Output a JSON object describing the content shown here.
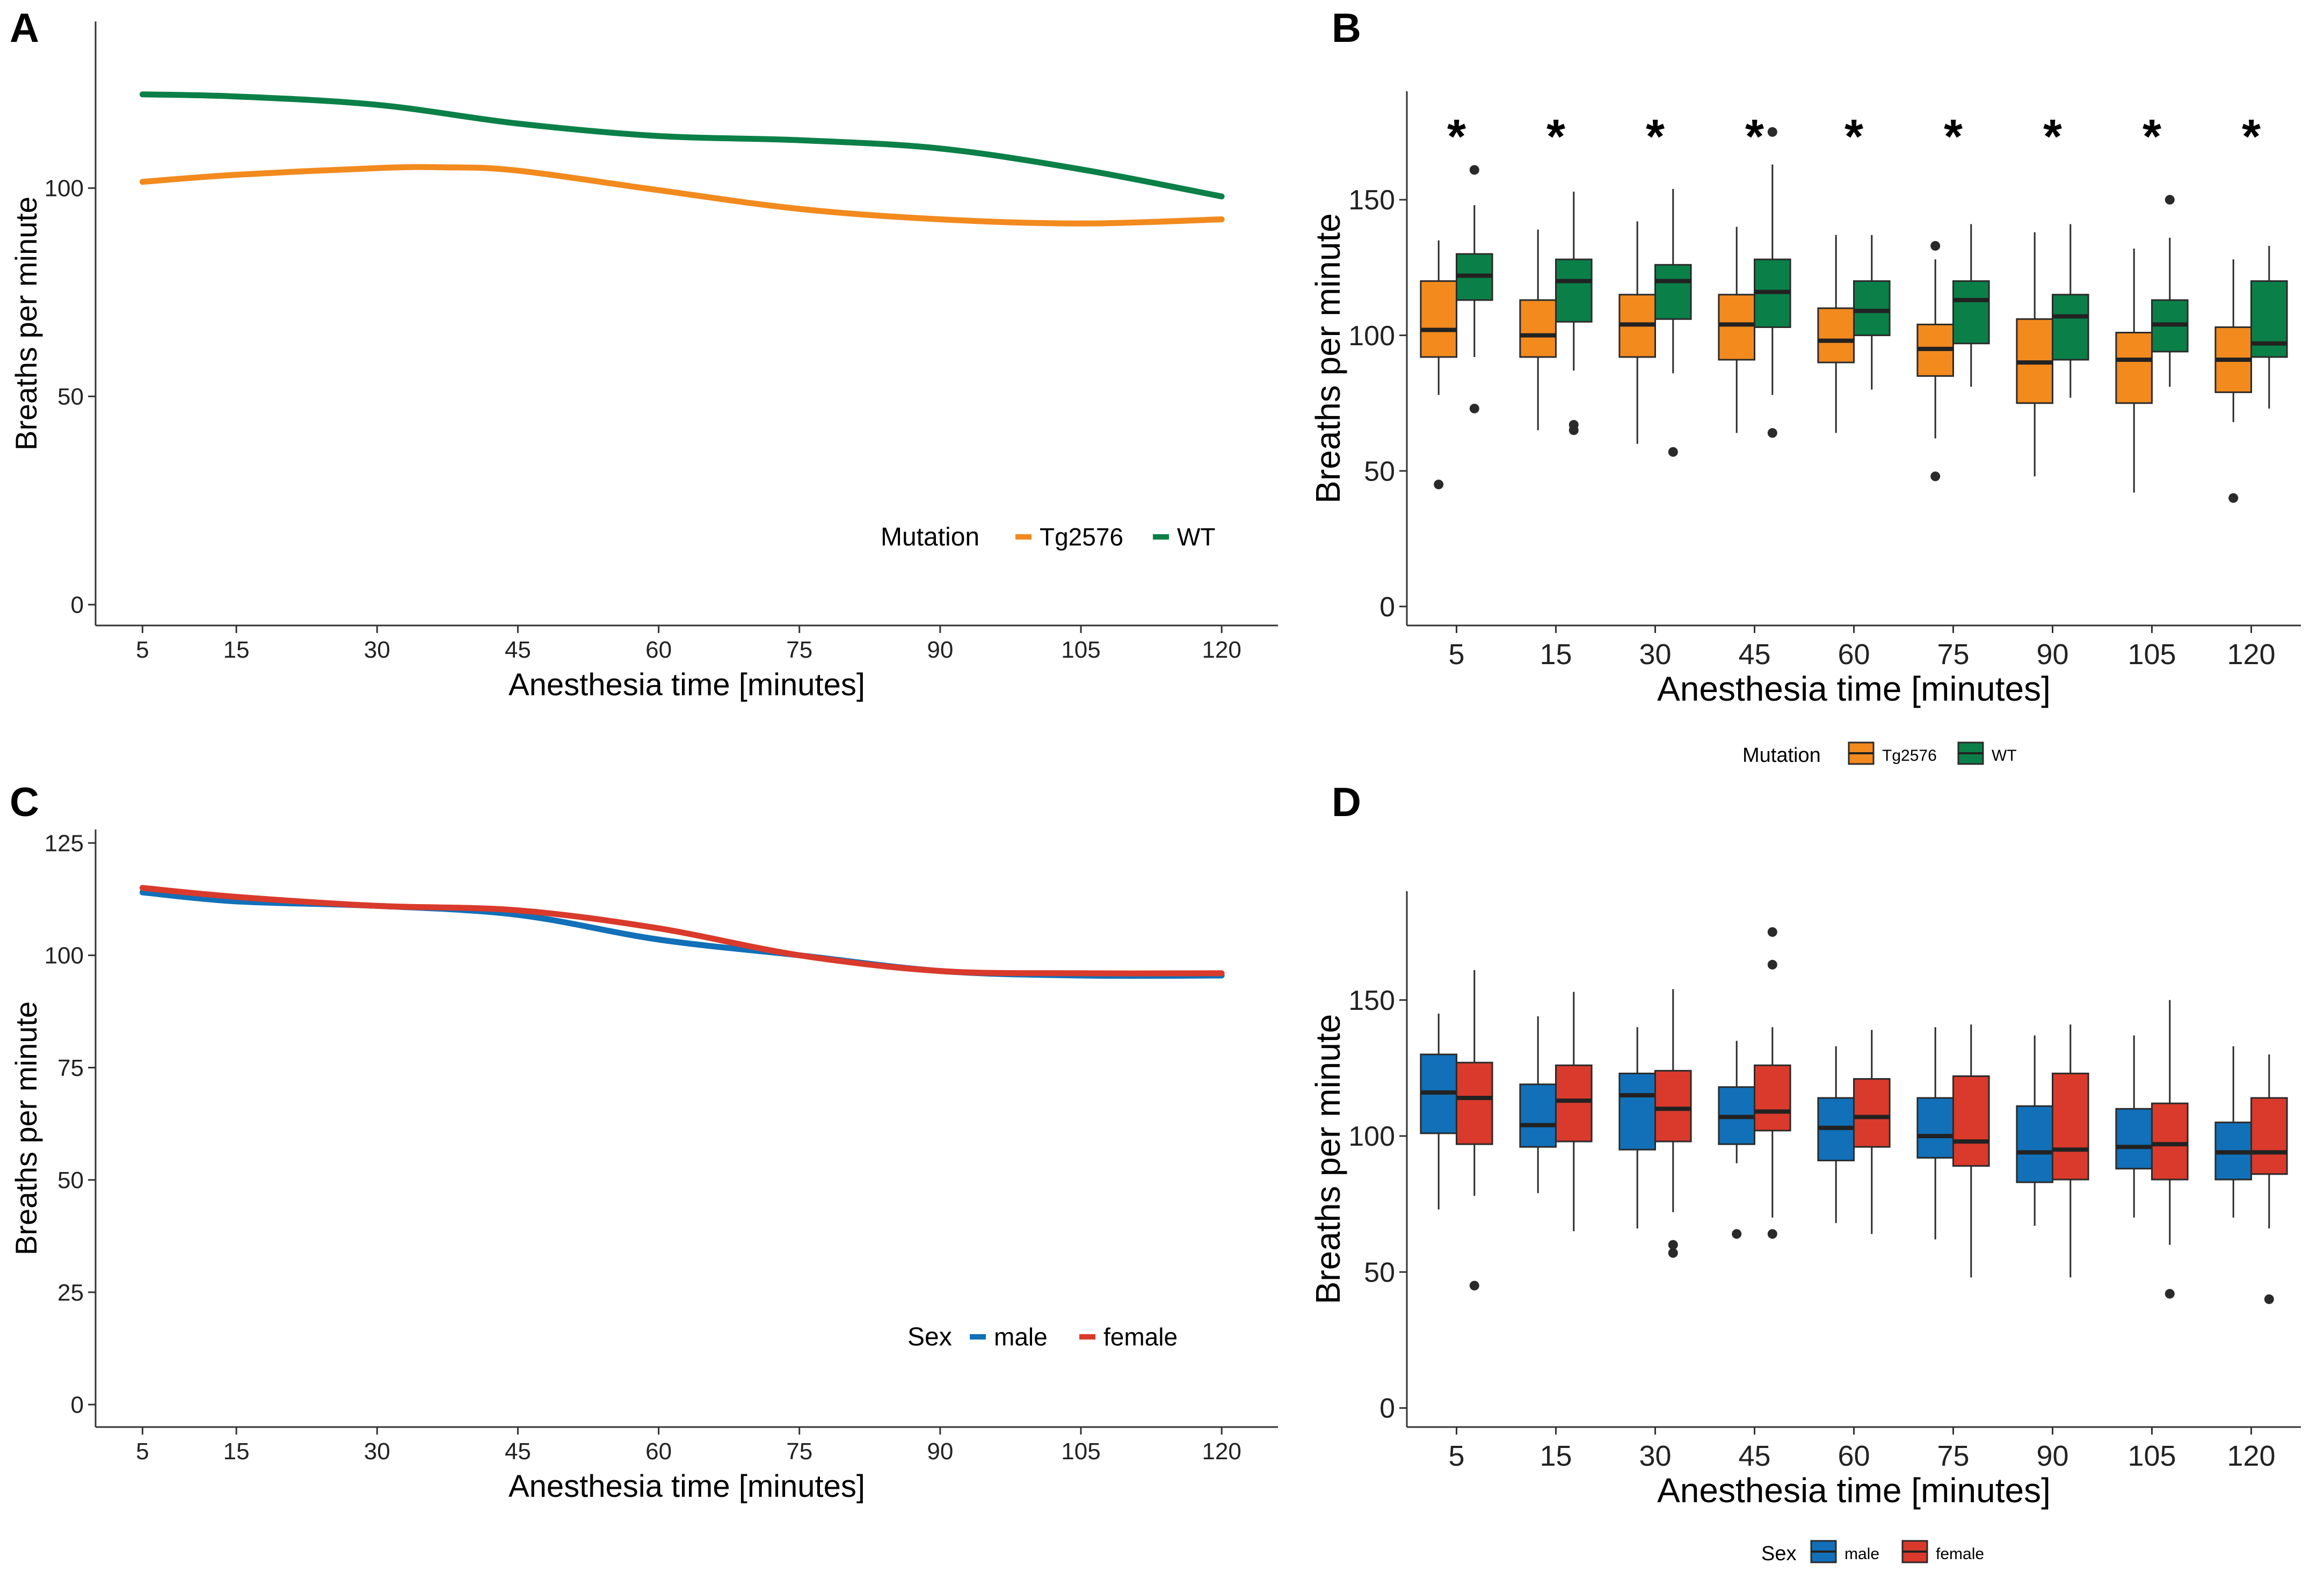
{
  "figure": {
    "colors": {
      "tg2576": "#F28A1E",
      "wt": "#0A8048",
      "male": "#1170B8",
      "female": "#D93A2B",
      "axis": "#333333",
      "box_line": "#2B2B2B"
    }
  },
  "chart_data": [
    {
      "panel": "A",
      "type": "line",
      "title": "",
      "xlabel": "Anesthesia time [minutes]",
      "ylabel": "Breaths per minute",
      "x_ticks": [
        5,
        15,
        30,
        45,
        60,
        75,
        90,
        105,
        120
      ],
      "x_tick_labels": [
        "5",
        "15",
        "30",
        "45",
        "60",
        "75",
        "90",
        "105",
        "120"
      ],
      "xlim": [
        0,
        126
      ],
      "y_ticks": [
        0,
        50,
        100
      ],
      "y_tick_labels": [
        "0",
        "50",
        "100"
      ],
      "ylim": [
        -5,
        140
      ],
      "legend": {
        "title": "Mutation",
        "entries": [
          "Tg2576",
          "WT"
        ],
        "placement": "bottom-right-inside"
      },
      "series": [
        {
          "name": "Tg2576",
          "color_key": "tg2576",
          "x": [
            5,
            15,
            30,
            37,
            45,
            60,
            75,
            90,
            105,
            120
          ],
          "y": [
            101.5,
            103.2,
            104.8,
            105,
            104.2,
            99.5,
            95,
            92.5,
            91.5,
            92.5
          ]
        },
        {
          "name": "WT",
          "color_key": "wt",
          "x": [
            5,
            15,
            30,
            45,
            60,
            75,
            90,
            105,
            120
          ],
          "y": [
            122.5,
            122,
            120,
            115.5,
            112.5,
            111.5,
            109.5,
            104.5,
            98
          ]
        }
      ]
    },
    {
      "panel": "B",
      "type": "box",
      "title": "",
      "xlabel": "Anesthesia time [minutes]",
      "ylabel": "Breaths per minute",
      "categories": [
        "5",
        "15",
        "30",
        "45",
        "60",
        "75",
        "90",
        "105",
        "120"
      ],
      "y_ticks": [
        0,
        50,
        100,
        150
      ],
      "y_tick_labels": [
        "0",
        "50",
        "100",
        "150"
      ],
      "ylim": [
        -7,
        190
      ],
      "legend": {
        "title": "Mutation",
        "entries": [
          "Tg2576",
          "WT"
        ],
        "placement": "bottom"
      },
      "annotations": [
        "*",
        "*",
        "*",
        "*",
        "*",
        "*",
        "*",
        "*",
        "*"
      ],
      "series": [
        {
          "name": "Tg2576",
          "color_key": "tg2576",
          "boxes": [
            {
              "low": 78,
              "q1": 92,
              "median": 102,
              "q3": 120,
              "high": 135,
              "outliers": [
                45
              ]
            },
            {
              "low": 65,
              "q1": 92,
              "median": 100,
              "q3": 113,
              "high": 139,
              "outliers": []
            },
            {
              "low": 60,
              "q1": 92,
              "median": 104,
              "q3": 115,
              "high": 142,
              "outliers": []
            },
            {
              "low": 64,
              "q1": 91,
              "median": 104,
              "q3": 115,
              "high": 140,
              "outliers": []
            },
            {
              "low": 64,
              "q1": 90,
              "median": 98,
              "q3": 110,
              "high": 137,
              "outliers": []
            },
            {
              "low": 62,
              "q1": 85,
              "median": 95,
              "q3": 104,
              "high": 128,
              "outliers": [
                48,
                133
              ]
            },
            {
              "low": 48,
              "q1": 75,
              "median": 90,
              "q3": 106,
              "high": 138,
              "outliers": []
            },
            {
              "low": 42,
              "q1": 75,
              "median": 91,
              "q3": 101,
              "high": 132,
              "outliers": []
            },
            {
              "low": 68,
              "q1": 79,
              "median": 91,
              "q3": 103,
              "high": 128,
              "outliers": [
                40
              ]
            }
          ]
        },
        {
          "name": "WT",
          "color_key": "wt",
          "boxes": [
            {
              "low": 92,
              "q1": 113,
              "median": 122,
              "q3": 130,
              "high": 148,
              "outliers": [
                73,
                161
              ]
            },
            {
              "low": 87,
              "q1": 105,
              "median": 120,
              "q3": 128,
              "high": 153,
              "outliers": [
                65,
                67
              ]
            },
            {
              "low": 86,
              "q1": 106,
              "median": 120,
              "q3": 126,
              "high": 154,
              "outliers": [
                57
              ]
            },
            {
              "low": 78,
              "q1": 103,
              "median": 116,
              "q3": 128,
              "high": 163,
              "outliers": [
                64,
                175
              ]
            },
            {
              "low": 80,
              "q1": 100,
              "median": 109,
              "q3": 120,
              "high": 137,
              "outliers": []
            },
            {
              "low": 81,
              "q1": 97,
              "median": 113,
              "q3": 120,
              "high": 141,
              "outliers": []
            },
            {
              "low": 77,
              "q1": 91,
              "median": 107,
              "q3": 115,
              "high": 141,
              "outliers": []
            },
            {
              "low": 81,
              "q1": 94,
              "median": 104,
              "q3": 113,
              "high": 136,
              "outliers": [
                150
              ]
            },
            {
              "low": 73,
              "q1": 92,
              "median": 97,
              "q3": 120,
              "high": 133,
              "outliers": []
            }
          ]
        }
      ]
    },
    {
      "panel": "C",
      "type": "line",
      "title": "",
      "xlabel": "Anesthesia time [minutes]",
      "ylabel": "Breaths per minute",
      "x_ticks": [
        5,
        15,
        30,
        45,
        60,
        75,
        90,
        105,
        120
      ],
      "x_tick_labels": [
        "5",
        "15",
        "30",
        "45",
        "60",
        "75",
        "90",
        "105",
        "120"
      ],
      "xlim": [
        0,
        126
      ],
      "y_ticks": [
        0,
        25,
        50,
        75,
        100,
        125
      ],
      "y_tick_labels": [
        "0",
        "25",
        "50",
        "75",
        "100",
        "125"
      ],
      "ylim": [
        -5,
        128
      ],
      "legend": {
        "title": "Sex",
        "entries": [
          "male",
          "female"
        ],
        "placement": "bottom-right-inside"
      },
      "series": [
        {
          "name": "male",
          "color_key": "male",
          "x": [
            5,
            15,
            30,
            45,
            60,
            75,
            90,
            105,
            120
          ],
          "y": [
            114,
            112,
            111,
            109,
            103.5,
            100,
            96.5,
            95.5,
            95.5
          ]
        },
        {
          "name": "female",
          "color_key": "female",
          "x": [
            5,
            15,
            30,
            45,
            60,
            75,
            90,
            105,
            120
          ],
          "y": [
            115,
            113,
            111,
            110,
            106,
            100,
            96.5,
            96,
            96
          ]
        }
      ]
    },
    {
      "panel": "D",
      "type": "box",
      "title": "",
      "xlabel": "Anesthesia time [minutes]",
      "ylabel": "Breaths per minute",
      "categories": [
        "5",
        "15",
        "30",
        "45",
        "60",
        "75",
        "90",
        "105",
        "120"
      ],
      "y_ticks": [
        0,
        50,
        100,
        150
      ],
      "y_tick_labels": [
        "0",
        "50",
        "100",
        "150"
      ],
      "ylim": [
        -7,
        190
      ],
      "legend": {
        "title": "Sex",
        "entries": [
          "male",
          "female"
        ],
        "placement": "bottom"
      },
      "series": [
        {
          "name": "male",
          "color_key": "male",
          "boxes": [
            {
              "low": 73,
              "q1": 101,
              "median": 116,
              "q3": 130,
              "high": 145,
              "outliers": []
            },
            {
              "low": 79,
              "q1": 96,
              "median": 104,
              "q3": 119,
              "high": 144,
              "outliers": []
            },
            {
              "low": 66,
              "q1": 95,
              "median": 115,
              "q3": 123,
              "high": 140,
              "outliers": []
            },
            {
              "low": 90,
              "q1": 97,
              "median": 107,
              "q3": 118,
              "high": 135,
              "outliers": [
                64
              ]
            },
            {
              "low": 68,
              "q1": 91,
              "median": 103,
              "q3": 114,
              "high": 133,
              "outliers": []
            },
            {
              "low": 62,
              "q1": 92,
              "median": 100,
              "q3": 114,
              "high": 140,
              "outliers": []
            },
            {
              "low": 67,
              "q1": 83,
              "median": 94,
              "q3": 111,
              "high": 137,
              "outliers": []
            },
            {
              "low": 70,
              "q1": 88,
              "median": 96,
              "q3": 110,
              "high": 137,
              "outliers": []
            },
            {
              "low": 70,
              "q1": 84,
              "median": 94,
              "q3": 105,
              "high": 133,
              "outliers": []
            }
          ]
        },
        {
          "name": "female",
          "color_key": "female",
          "boxes": [
            {
              "low": 78,
              "q1": 97,
              "median": 114,
              "q3": 127,
              "high": 161,
              "outliers": [
                45
              ]
            },
            {
              "low": 65,
              "q1": 98,
              "median": 113,
              "q3": 126,
              "high": 153,
              "outliers": []
            },
            {
              "low": 72,
              "q1": 98,
              "median": 110,
              "q3": 124,
              "high": 154,
              "outliers": [
                57,
                60
              ]
            },
            {
              "low": 70,
              "q1": 102,
              "median": 109,
              "q3": 126,
              "high": 140,
              "outliers": [
                64,
                163,
                175
              ]
            },
            {
              "low": 64,
              "q1": 96,
              "median": 107,
              "q3": 121,
              "high": 139,
              "outliers": []
            },
            {
              "low": 48,
              "q1": 89,
              "median": 98,
              "q3": 122,
              "high": 141,
              "outliers": []
            },
            {
              "low": 48,
              "q1": 84,
              "median": 95,
              "q3": 123,
              "high": 141,
              "outliers": []
            },
            {
              "low": 60,
              "q1": 84,
              "median": 97,
              "q3": 112,
              "high": 150,
              "outliers": [
                42
              ]
            },
            {
              "low": 66,
              "q1": 86,
              "median": 94,
              "q3": 114,
              "high": 130,
              "outliers": [
                40
              ]
            }
          ]
        }
      ]
    }
  ]
}
